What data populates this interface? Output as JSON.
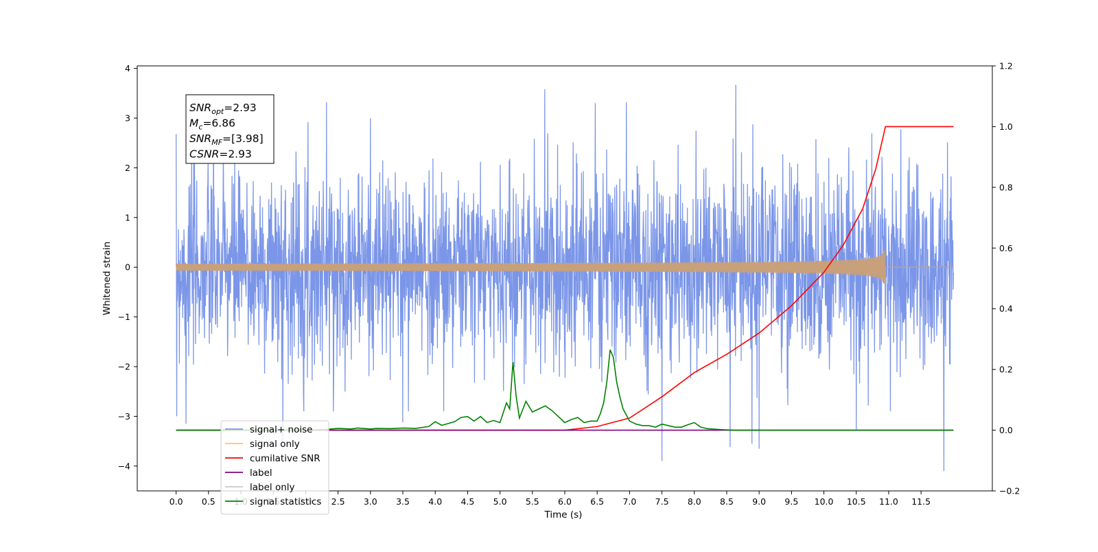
{
  "chart_data": {
    "type": "line",
    "title": "",
    "xlabel": "Time (s)",
    "ylabel": "Whitened strain",
    "y2label": "",
    "xlim": [
      -0.6,
      12.6
    ],
    "ylim": [
      -4.5,
      4.05
    ],
    "y2lim": [
      -0.2,
      1.2
    ],
    "x_ticks": [
      0.0,
      0.5,
      1.0,
      1.5,
      2.0,
      2.5,
      3.0,
      3.5,
      4.0,
      4.5,
      5.0,
      5.5,
      6.0,
      6.5,
      7.0,
      7.5,
      8.0,
      8.5,
      9.0,
      9.5,
      10.0,
      10.5,
      11.0,
      11.5
    ],
    "x_tick_labels": [
      "0.0",
      "0.5",
      "1.0",
      "1.5",
      "2.0",
      "2.5",
      "3.0",
      "3.5",
      "4.0",
      "4.5",
      "5.0",
      "5.5",
      "6.0",
      "6.5",
      "7.0",
      "7.5",
      "8.0",
      "8.5",
      "9.0",
      "9.5",
      "10.0",
      "10.5",
      "11.0",
      "11.5"
    ],
    "y_ticks": [
      4,
      3,
      2,
      1,
      0,
      -1,
      -2,
      -3,
      -4
    ],
    "y_tick_labels": [
      "4",
      "3",
      "2",
      "1",
      "0",
      "−1",
      "−2",
      "−3",
      "−4"
    ],
    "y2_ticks": [
      1.2,
      1.0,
      0.8,
      0.6,
      0.4,
      0.2,
      0.0,
      -0.2
    ],
    "y2_tick_labels": [
      "1.2",
      "1.0",
      "0.8",
      "0.6",
      "0.4",
      "0.2",
      "0.0",
      "−0.2"
    ],
    "grid": false,
    "legend_position": "lower-left",
    "legend": [
      {
        "label": "signal+ noise",
        "color": "#7b96e8"
      },
      {
        "label": "signal only",
        "color": "#ffc266"
      },
      {
        "label": "cumilative SNR",
        "color": "#ff0000"
      },
      {
        "label": "label",
        "color": "#800080"
      },
      {
        "label": "label only",
        "color": "#c8c8c8"
      },
      {
        "label": "signal statistics",
        "color": "#008000"
      }
    ],
    "annotation": [
      {
        "base": "SNR",
        "sub": "opt",
        "rest": "=2.93"
      },
      {
        "base": "M",
        "sub": "c",
        "rest": "=6.86"
      },
      {
        "base": "SNR",
        "sub": "MF",
        "rest": "=[3.98]"
      },
      {
        "base": "CSNR",
        "sub": "",
        "rest": "=2.93"
      }
    ],
    "series": [
      {
        "name": "signal+ noise",
        "axis": "left",
        "color": "#7b96e8",
        "x_range": [
          0.0,
          12.0
        ],
        "envelope_sd": 0.95,
        "spikes": [
          {
            "x": 0.0,
            "y": 2.68
          },
          {
            "x": 0.01,
            "y": -3.0
          },
          {
            "x": 0.15,
            "y": -3.15
          },
          {
            "x": 1.65,
            "y": -3.55
          },
          {
            "x": 2.32,
            "y": 3.32
          },
          {
            "x": 3.5,
            "y": -3.12
          },
          {
            "x": 5.69,
            "y": 3.58
          },
          {
            "x": 6.47,
            "y": 3.3
          },
          {
            "x": 6.95,
            "y": 3.32
          },
          {
            "x": 7.5,
            "y": -3.9
          },
          {
            "x": 8.55,
            "y": -3.62
          },
          {
            "x": 8.64,
            "y": 3.67
          },
          {
            "x": 8.89,
            "y": -3.55
          },
          {
            "x": 9.0,
            "y": -3.65
          },
          {
            "x": 10.5,
            "y": -3.28
          },
          {
            "x": 11.85,
            "y": -4.1
          }
        ]
      },
      {
        "name": "signal only",
        "axis": "left",
        "color": "#c8a07a",
        "x_range": [
          0.0,
          12.0
        ],
        "chirp_end": 10.95,
        "chirp_peak_amplitude": 0.38,
        "baseline": 0.0
      },
      {
        "name": "cumilative SNR",
        "axis": "right",
        "color": "#ff0000",
        "x": [
          0.0,
          6.0,
          6.5,
          7.0,
          7.5,
          8.0,
          8.5,
          9.0,
          9.5,
          10.0,
          10.3,
          10.6,
          10.8,
          10.95,
          11.0,
          12.0
        ],
        "y": [
          0.0,
          0.0,
          0.012,
          0.04,
          0.11,
          0.19,
          0.25,
          0.32,
          0.41,
          0.52,
          0.61,
          0.73,
          0.86,
          1.0,
          1.0,
          1.0
        ]
      },
      {
        "name": "label",
        "axis": "right",
        "color": "#800080",
        "x": [
          0.0,
          12.0
        ],
        "y": [
          0.0,
          0.0
        ]
      },
      {
        "name": "signal statistics",
        "axis": "right",
        "color": "#008000",
        "x": [
          0.0,
          0.5,
          1.0,
          1.5,
          2.0,
          2.3,
          2.5,
          2.7,
          2.8,
          3.0,
          3.1,
          3.3,
          3.5,
          3.7,
          3.9,
          4.0,
          4.1,
          4.2,
          4.3,
          4.4,
          4.5,
          4.6,
          4.7,
          4.8,
          4.9,
          5.0,
          5.1,
          5.15,
          5.2,
          5.25,
          5.3,
          5.4,
          5.5,
          5.6,
          5.7,
          5.8,
          5.9,
          6.0,
          6.1,
          6.2,
          6.3,
          6.4,
          6.5,
          6.55,
          6.6,
          6.65,
          6.7,
          6.75,
          6.8,
          6.85,
          6.9,
          7.0,
          7.1,
          7.2,
          7.3,
          7.4,
          7.5,
          7.6,
          7.7,
          7.8,
          7.9,
          8.0,
          8.1,
          8.2,
          8.4,
          8.6,
          9.0,
          10.0,
          11.0,
          12.0
        ],
        "y": [
          0.0,
          0.0,
          0.0,
          0.0,
          0.0,
          0.002,
          0.006,
          0.004,
          0.007,
          0.004,
          0.006,
          0.005,
          0.007,
          0.006,
          0.012,
          0.028,
          0.016,
          0.022,
          0.028,
          0.042,
          0.045,
          0.03,
          0.045,
          0.025,
          0.032,
          0.025,
          0.09,
          0.07,
          0.225,
          0.11,
          0.04,
          0.095,
          0.06,
          0.07,
          0.08,
          0.065,
          0.045,
          0.025,
          0.035,
          0.042,
          0.025,
          0.03,
          0.03,
          0.055,
          0.09,
          0.16,
          0.265,
          0.24,
          0.16,
          0.11,
          0.07,
          0.03,
          0.02,
          0.015,
          0.015,
          0.01,
          0.02,
          0.015,
          0.01,
          0.01,
          0.018,
          0.025,
          0.01,
          0.005,
          0.002,
          0.0,
          0.0,
          0.0,
          0.0,
          0.0
        ]
      }
    ]
  }
}
